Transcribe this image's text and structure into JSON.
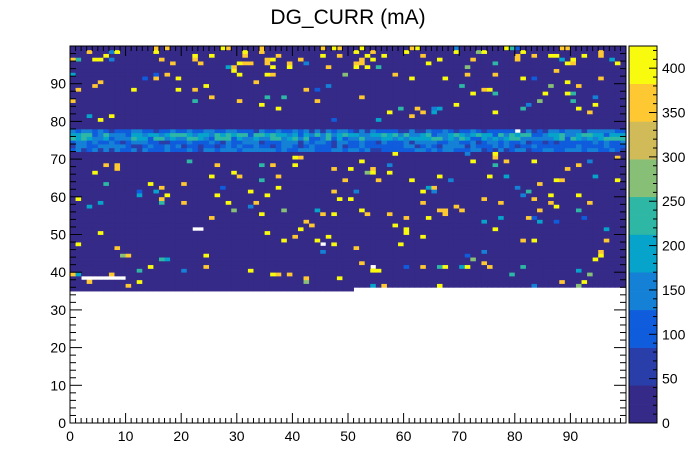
{
  "chart_data": {
    "type": "heatmap",
    "title": "DG_CURR (mA)",
    "xlabel": "",
    "ylabel": "",
    "xlim": [
      0,
      100
    ],
    "ylim": [
      0,
      100
    ],
    "x_ticks": [
      "0",
      "10",
      "20",
      "30",
      "40",
      "50",
      "60",
      "70",
      "80",
      "90"
    ],
    "y_ticks": [
      "0",
      "10",
      "20",
      "30",
      "40",
      "50",
      "60",
      "70",
      "80",
      "90"
    ],
    "z_range": [
      0,
      425
    ],
    "z_ticks": [
      "0",
      "50",
      "100",
      "150",
      "200",
      "250",
      "300",
      "350",
      "400"
    ],
    "colorscale": [
      "#352a87",
      "#2a3eaa",
      "#0f5cdd",
      "#1481d6",
      "#06a4ca",
      "#2eb7a4",
      "#87bf77",
      "#d1bb59",
      "#fec832",
      "#f9fb0e"
    ],
    "filled_region": {
      "x_range": [
        0,
        100
      ],
      "y_from": 35,
      "y_to": 100,
      "y_from_right_part": 36,
      "right_part_x_from": 51
    },
    "base_level": 5,
    "bands": [
      {
        "y_range": [
          72,
          78
        ],
        "level": 120
      },
      {
        "y_range": [
          75,
          77
        ],
        "level": 190
      }
    ],
    "saturated_rows": [
      36,
      37,
      38,
      39,
      40,
      41,
      42,
      43,
      44,
      45,
      46,
      47,
      48,
      49,
      50,
      51,
      52,
      53,
      54,
      55,
      56,
      57,
      58,
      59,
      60,
      61,
      62,
      63,
      64,
      65,
      66,
      67,
      68,
      69,
      70,
      71,
      80,
      81,
      82,
      83,
      84,
      85,
      86,
      87,
      88,
      89,
      90,
      91,
      92,
      93,
      94,
      95,
      96,
      97,
      98,
      99
    ],
    "empty_cells": [
      {
        "x": [
          2,
          10
        ],
        "y": [
          38,
          39
        ]
      },
      {
        "x": [
          22,
          24
        ],
        "y": [
          51,
          52
        ]
      },
      {
        "x": [
          80,
          81
        ],
        "y": [
          77,
          78
        ]
      },
      {
        "x": [
          45,
          46
        ],
        "y": [
          47,
          48
        ]
      },
      {
        "x": [
          54,
          55
        ],
        "y": [
          41,
          42
        ]
      }
    ]
  }
}
